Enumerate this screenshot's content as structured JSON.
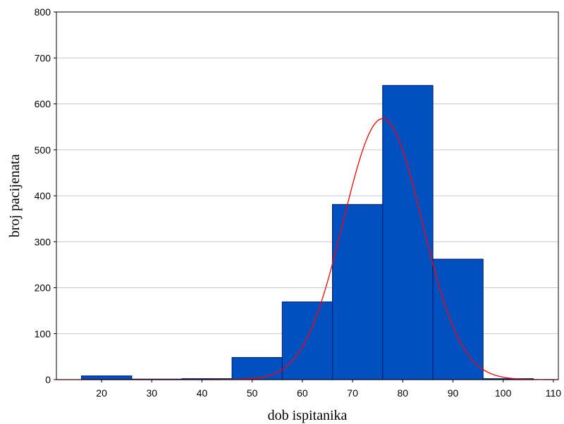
{
  "chart_data": {
    "type": "bar",
    "title": "",
    "xlabel": "dob ispitanika",
    "ylabel": "broj pacijenata",
    "xlim": [
      11,
      111
    ],
    "ylim": [
      0,
      800
    ],
    "x_ticks": [
      20,
      30,
      40,
      50,
      60,
      70,
      80,
      90,
      100,
      110
    ],
    "y_ticks": [
      0,
      100,
      200,
      300,
      400,
      500,
      600,
      700,
      800
    ],
    "grid": "horizontal",
    "bins": [
      {
        "x0": 16,
        "x1": 26,
        "value": 8
      },
      {
        "x0": 26,
        "x1": 36,
        "value": 1
      },
      {
        "x0": 36,
        "x1": 46,
        "value": 2
      },
      {
        "x0": 46,
        "x1": 56,
        "value": 48
      },
      {
        "x0": 56,
        "x1": 66,
        "value": 169
      },
      {
        "x0": 66,
        "x1": 76,
        "value": 381
      },
      {
        "x0": 76,
        "x1": 86,
        "value": 640
      },
      {
        "x0": 86,
        "x1": 96,
        "value": 262
      },
      {
        "x0": 96,
        "x1": 106,
        "value": 2
      }
    ],
    "normal_curve": {
      "mean": 76,
      "sd": 7.85,
      "peak": 568
    },
    "colors": {
      "bar_fill": "#0050c0",
      "bar_stroke": "#00207a",
      "curve": "#ff0000",
      "grid": "#c8c8c8"
    }
  }
}
